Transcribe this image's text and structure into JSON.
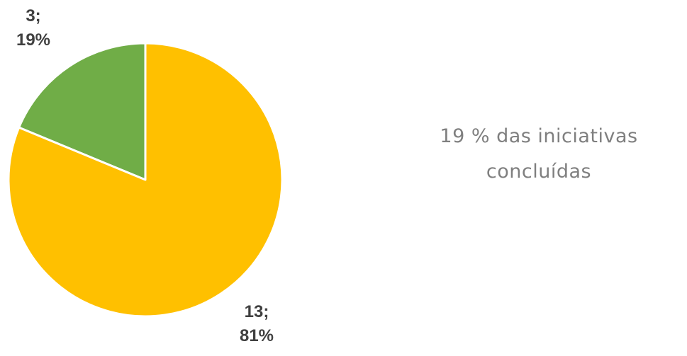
{
  "chart_data": {
    "type": "pie",
    "slices": [
      {
        "value": 3,
        "percent": "19%",
        "label_value": "3;",
        "label_percent": "19%",
        "color": "#70AD47"
      },
      {
        "value": 13,
        "percent": "81%",
        "label_value": "13;",
        "label_percent": "81%",
        "color": "#FFC000"
      }
    ],
    "start_angle_deg": 0,
    "direction": "counterclockwise",
    "border_color": "#ffffff"
  },
  "summary": {
    "line1": "19 % das iniciativas",
    "line2": "concluídas"
  }
}
